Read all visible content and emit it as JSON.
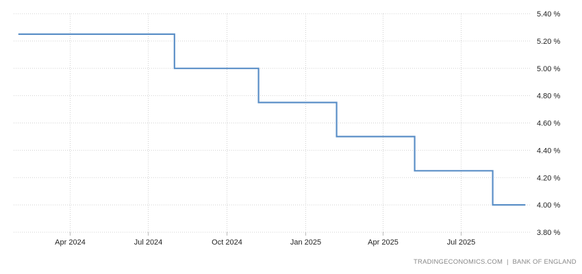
{
  "chart_data": {
    "type": "line",
    "step": true,
    "title": "",
    "xlabel": "",
    "ylabel": "",
    "ylim": [
      3.8,
      5.4
    ],
    "y_ticks": [
      "5.40 %",
      "5.20 %",
      "5.00 %",
      "4.80 %",
      "4.60 %",
      "4.40 %",
      "4.20 %",
      "4.00 %",
      "3.80 %"
    ],
    "y_tick_values": [
      5.4,
      5.2,
      5.0,
      4.8,
      4.6,
      4.4,
      4.2,
      4.0,
      3.8
    ],
    "x_ticks": [
      "Apr 2024",
      "Jul 2024",
      "Oct 2024",
      "Jan 2025",
      "Apr 2025",
      "Jul 2025"
    ],
    "x_tick_dates": [
      "2024-04-01",
      "2024-07-01",
      "2024-10-01",
      "2025-01-01",
      "2025-04-01",
      "2025-07-01"
    ],
    "grid": true,
    "y_axis_position": "right",
    "line_color": "#5b8fc7",
    "series": [
      {
        "points": [
          {
            "x": "2024-02-01",
            "y": 5.25
          },
          {
            "x": "2024-08-01",
            "y": 5.0
          },
          {
            "x": "2024-11-07",
            "y": 4.75
          },
          {
            "x": "2025-02-06",
            "y": 4.5
          },
          {
            "x": "2025-05-08",
            "y": 4.25
          },
          {
            "x": "2025-08-07",
            "y": 4.0
          },
          {
            "x": "2025-09-14",
            "y": 4.0
          }
        ]
      }
    ]
  },
  "footer": {
    "source_left": "TRADINGECONOMICS.COM",
    "separator": "|",
    "source_right": "BANK OF ENGLAND"
  }
}
